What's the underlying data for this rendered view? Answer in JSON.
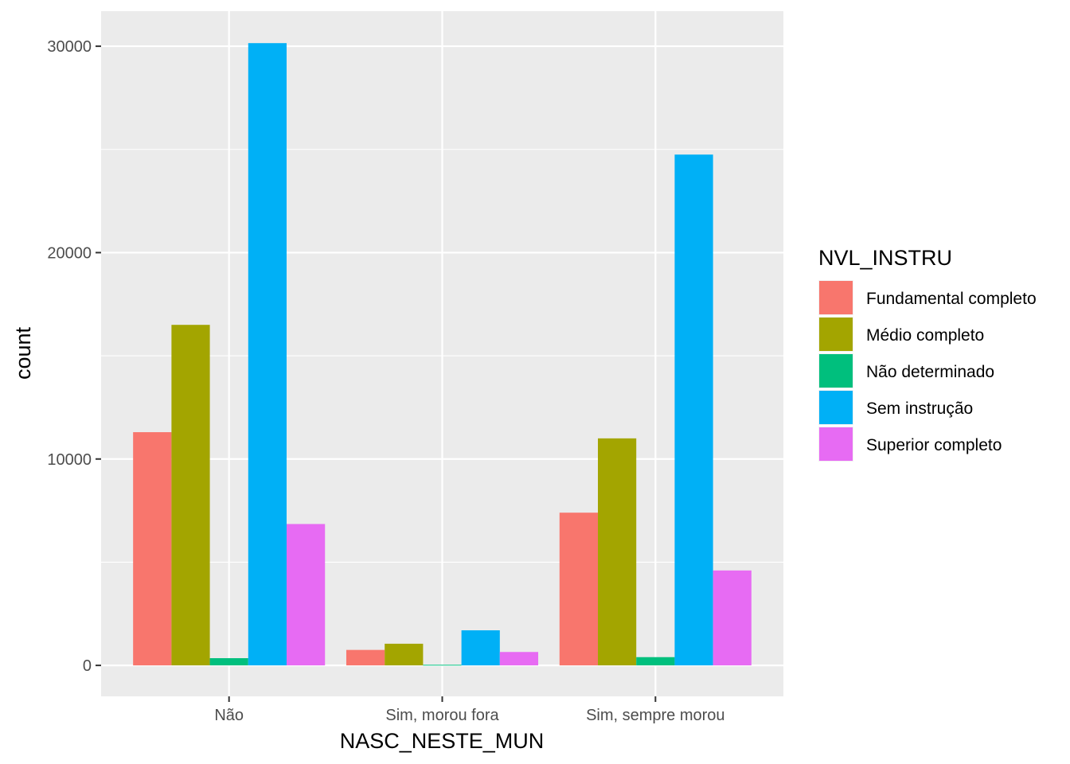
{
  "chart_data": {
    "type": "bar",
    "xlabel": "NASC_NESTE_MUN",
    "ylabel": "count",
    "categories": [
      "Não",
      "Sim, morou fora",
      "Sim, sempre morou"
    ],
    "y_ticks": [
      0,
      10000,
      20000,
      30000
    ],
    "y_tick_labels": [
      "0",
      "10000",
      "20000",
      "30000"
    ],
    "ylim": [
      -1500,
      31700
    ],
    "legend_title": "NVL_INSTRU",
    "legend_position": "right",
    "grid": true,
    "series": [
      {
        "name": "Fundamental completo",
        "color": "#F8766D",
        "values": [
          11300,
          750,
          7400
        ]
      },
      {
        "name": "Médio completo",
        "color": "#A3A500",
        "values": [
          16500,
          1050,
          11000
        ]
      },
      {
        "name": "Não determinado",
        "color": "#00BF7D",
        "values": [
          350,
          30,
          400
        ]
      },
      {
        "name": "Sem instrução",
        "color": "#00B0F6",
        "values": [
          30150,
          1700,
          24750
        ]
      },
      {
        "name": "Superior completo",
        "color": "#E76BF3",
        "values": [
          6850,
          650,
          4600
        ]
      }
    ]
  }
}
